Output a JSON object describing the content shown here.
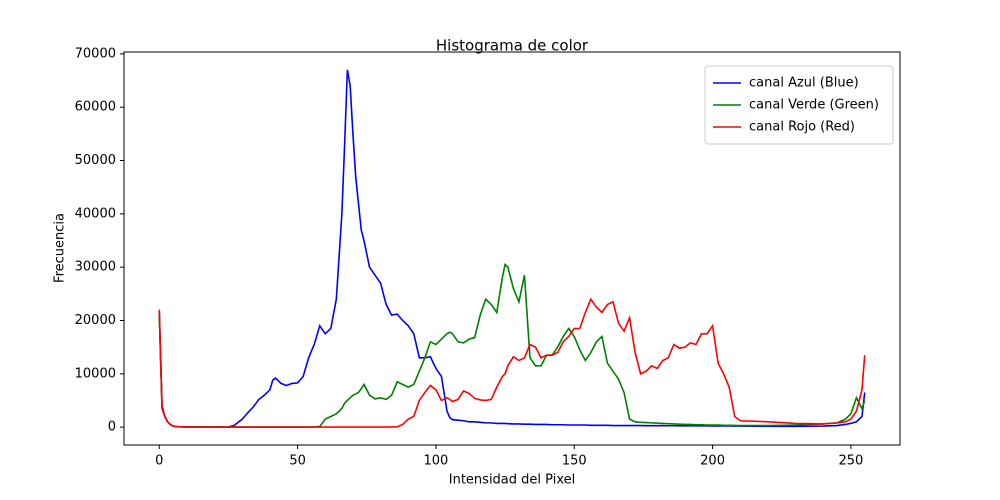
{
  "chart_data": {
    "type": "line",
    "title": "Histograma de color",
    "xlabel": "Intensidad del Pixel",
    "ylabel": "Frecuencia",
    "x": [
      0,
      1,
      2,
      3,
      4,
      5,
      6,
      8,
      10,
      15,
      20,
      25,
      27,
      30,
      32,
      34,
      36,
      38,
      40,
      41,
      42,
      44,
      46,
      48,
      50,
      52,
      54,
      56,
      58,
      60,
      62,
      64,
      66,
      67,
      68,
      69,
      70,
      71,
      72,
      73,
      74,
      76,
      78,
      80,
      82,
      84,
      86,
      88,
      90,
      92,
      94,
      96,
      98,
      100,
      102,
      104,
      105,
      106,
      108,
      110,
      112,
      114,
      116,
      118,
      120,
      122,
      124,
      125,
      126,
      128,
      130,
      132,
      134,
      136,
      138,
      140,
      142,
      144,
      146,
      148,
      150,
      152,
      154,
      156,
      158,
      160,
      162,
      164,
      166,
      168,
      170,
      172,
      174,
      176,
      178,
      180,
      182,
      184,
      186,
      188,
      190,
      192,
      194,
      196,
      198,
      200,
      202,
      204,
      206,
      208,
      210,
      220,
      230,
      240,
      245,
      248,
      250,
      252,
      254,
      255
    ],
    "series": [
      {
        "name": "canal Azul (Blue)",
        "color": "#0000ff",
        "values": [
          22000,
          4000,
          2000,
          1000,
          500,
          200,
          100,
          50,
          30,
          20,
          20,
          50,
          300,
          1500,
          2700,
          3800,
          5200,
          6000,
          7000,
          8800,
          9200,
          8200,
          7800,
          8200,
          8300,
          9500,
          13000,
          15500,
          19000,
          17500,
          18500,
          24000,
          40000,
          53000,
          67000,
          64000,
          55000,
          47000,
          42000,
          37000,
          35000,
          30000,
          28500,
          27000,
          23000,
          21000,
          21200,
          20000,
          19000,
          17500,
          13000,
          13000,
          13200,
          11000,
          9500,
          3000,
          1800,
          1400,
          1300,
          1200,
          1000,
          1000,
          900,
          800,
          800,
          700,
          700,
          700,
          650,
          600,
          600,
          550,
          550,
          500,
          500,
          500,
          450,
          450,
          450,
          400,
          400,
          400,
          400,
          350,
          350,
          350,
          350,
          300,
          300,
          300,
          300,
          300,
          300,
          280,
          280,
          270,
          270,
          260,
          260,
          250,
          250,
          250,
          250,
          240,
          240,
          230,
          230,
          220,
          220,
          200,
          200,
          150,
          150,
          200,
          300,
          500,
          700,
          1000,
          2000,
          6500
        ]
      },
      {
        "name": "canal Verde (Green)",
        "color": "#008000",
        "values": [
          21000,
          3500,
          2000,
          1000,
          500,
          200,
          100,
          50,
          30,
          20,
          20,
          20,
          20,
          20,
          20,
          20,
          20,
          20,
          20,
          20,
          20,
          20,
          20,
          20,
          20,
          20,
          20,
          30,
          100,
          1500,
          2000,
          2500,
          3500,
          4500,
          5000,
          5500,
          6000,
          6200,
          6500,
          7200,
          8000,
          6000,
          5300,
          5500,
          5200,
          6000,
          8500,
          8000,
          7500,
          8000,
          10500,
          13000,
          16000,
          15500,
          16500,
          17500,
          17800,
          17500,
          16000,
          15800,
          16500,
          16800,
          21000,
          24000,
          23000,
          21500,
          28000,
          30500,
          30000,
          26000,
          23500,
          28500,
          13000,
          11500,
          11500,
          13500,
          13500,
          15000,
          17000,
          18500,
          17000,
          14500,
          12500,
          14000,
          16000,
          17000,
          12000,
          10500,
          9000,
          6500,
          1500,
          1000,
          900,
          850,
          800,
          750,
          700,
          650,
          600,
          550,
          500,
          500,
          450,
          450,
          400,
          400,
          380,
          350,
          350,
          320,
          300,
          300,
          400,
          600,
          800,
          1500,
          2500,
          5500,
          3500,
          5000
        ]
      },
      {
        "name": "canal Rojo (Red)",
        "color": "#ff0000",
        "values": [
          22000,
          3500,
          2000,
          1000,
          500,
          200,
          100,
          50,
          30,
          20,
          20,
          20,
          20,
          20,
          20,
          20,
          20,
          20,
          20,
          20,
          20,
          20,
          20,
          20,
          20,
          20,
          20,
          20,
          20,
          20,
          20,
          20,
          20,
          20,
          20,
          20,
          20,
          20,
          20,
          20,
          20,
          20,
          20,
          20,
          20,
          30,
          50,
          500,
          1500,
          2000,
          5000,
          6500,
          7800,
          7000,
          5000,
          5500,
          5200,
          4800,
          5200,
          6800,
          6300,
          5400,
          5100,
          5000,
          5200,
          7500,
          9500,
          10000,
          11500,
          13200,
          12500,
          13000,
          15500,
          15000,
          13000,
          13500,
          13500,
          14000,
          16000,
          17000,
          18500,
          18500,
          21500,
          24000,
          22500,
          21500,
          23000,
          23500,
          19500,
          18000,
          20500,
          14000,
          10000,
          10500,
          11500,
          11000,
          12500,
          13000,
          15500,
          14800,
          15000,
          15800,
          15500,
          17500,
          17500,
          19000,
          12000,
          10000,
          7500,
          2000,
          1200,
          1000,
          700,
          600,
          800,
          1000,
          1500,
          3000,
          7000,
          13500
        ]
      }
    ],
    "xlim": [
      -12.75,
      267.75
    ],
    "xticks": [
      0,
      50,
      100,
      150,
      200,
      250
    ],
    "ylim": [
      -3350,
      70350
    ],
    "yticks": [
      0,
      10000,
      20000,
      30000,
      40000,
      50000,
      60000,
      70000
    ],
    "legend": "upper right"
  }
}
